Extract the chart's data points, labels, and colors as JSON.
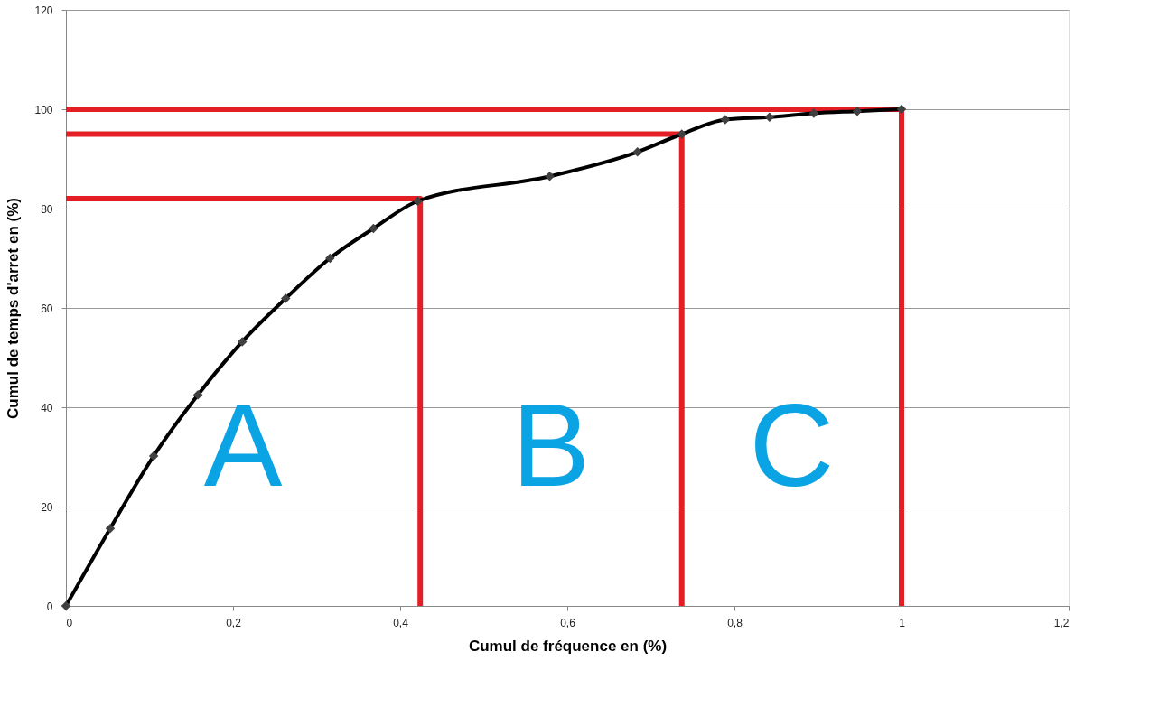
{
  "chart_data": {
    "type": "line",
    "xlabel": "Cumul de fréquence en (%)",
    "ylabel": "Cumul de temps d'arret en (%)",
    "xlim": [
      0,
      1.2
    ],
    "ylim": [
      0,
      120
    ],
    "xticks": [
      0,
      {
        "value": 0.2,
        "label": "0,2"
      },
      {
        "value": 0.4,
        "label": "0,4"
      },
      {
        "value": 0.6,
        "label": "0,6"
      },
      {
        "value": 0.8,
        "label": "0,8"
      },
      1,
      {
        "value": 1.2,
        "label": "1,2"
      }
    ],
    "yticks": [
      0,
      20,
      40,
      60,
      80,
      100,
      120
    ],
    "grid": "y",
    "series": [
      {
        "color": "#e31e24",
        "marker": "none",
        "x": [
          0,
          0.424,
          0.424
        ],
        "values": [
          82,
          82,
          0
        ]
      },
      {
        "color": "#e31e24",
        "marker": "none",
        "x": [
          0,
          0.737,
          0.737
        ],
        "values": [
          95,
          95,
          0
        ]
      },
      {
        "color": "#e31e24",
        "marker": "none",
        "x": [
          0,
          1,
          1
        ],
        "values": [
          100,
          100,
          0
        ]
      },
      {
        "color": "#000000",
        "marker": "diamond",
        "x": [
          0,
          0.053,
          0.105,
          0.158,
          0.211,
          0.263,
          0.316,
          0.368,
          0.421,
          0.579,
          0.684,
          0.737,
          0.789,
          0.842,
          0.895,
          0.947,
          1
        ],
        "values": [
          0,
          15.6,
          30.2,
          42.5,
          53.2,
          61.9,
          70,
          76,
          81.5,
          86.5,
          91.4,
          95,
          97.9,
          98.4,
          99.2,
          99.6,
          100
        ]
      }
    ],
    "annotations": [
      "A",
      "B",
      "C"
    ]
  }
}
